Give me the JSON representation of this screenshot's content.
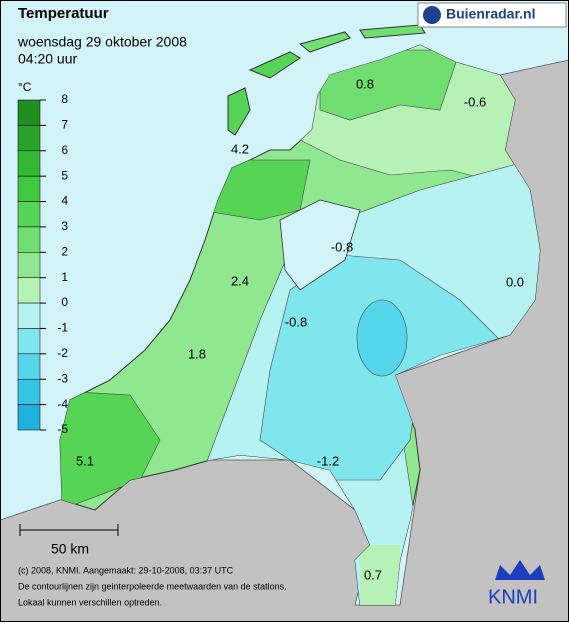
{
  "header": {
    "title": "Temperatuur",
    "date": "woensdag 29 oktober 2008",
    "time": "04:20 uur"
  },
  "logo": {
    "brand": "Buienradar.nl"
  },
  "legend": {
    "unit": "°C",
    "ticks": [
      8,
      7,
      6,
      5,
      4,
      3,
      2,
      1,
      0,
      -1,
      -2,
      -3,
      -4,
      -5
    ],
    "colors": [
      "#1f8f1f",
      "#29a329",
      "#33b833",
      "#3fc93f",
      "#55d455",
      "#70de70",
      "#8fe88f",
      "#b6f2b6",
      "#b6f2f2",
      "#7fe6ee",
      "#55d6ea",
      "#36c4e6",
      "#1fb0de"
    ]
  },
  "stations": [
    "0.8",
    "-0.6",
    "4.2",
    "-0.8",
    "0.0",
    "2.4",
    "-0.8",
    "1.8",
    "-1.2",
    "5.1",
    "0.7"
  ],
  "scale_bar": "50 km",
  "footer": [
    "(c) 2008, KNMI. Aangemaakt: 29-10-2008, 03:37 UTC",
    "De contourlijnen zijn geinterpoleerde meetwaarden van de stations.",
    "Lokaal kunnen verschillen optreden."
  ],
  "knmi": "KNMI"
}
